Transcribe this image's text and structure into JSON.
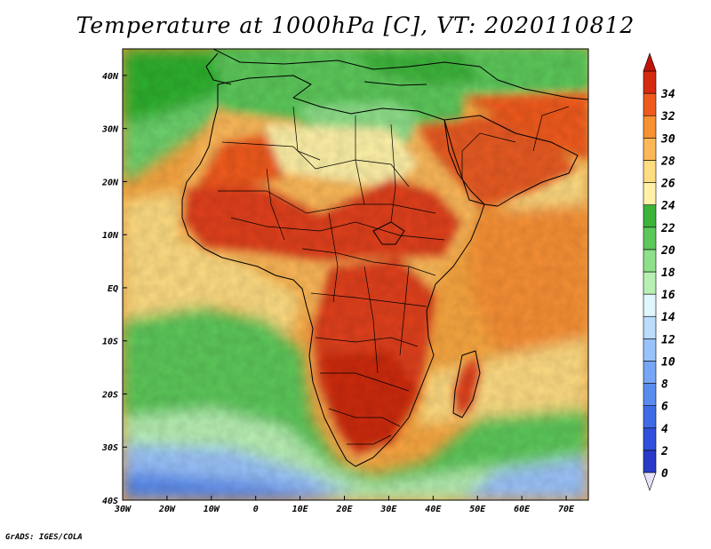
{
  "title": "Temperature at 1000hPa [C], VT: 2020110812",
  "credit": "GrADS: IGES/COLA",
  "map": {
    "projection": "latlon",
    "lon_range": [
      -30,
      75
    ],
    "lat_range": [
      -40,
      45
    ],
    "x_ticks": [
      -30,
      -20,
      -10,
      0,
      10,
      20,
      30,
      40,
      50,
      60,
      70
    ],
    "x_labels": [
      "30W",
      "20W",
      "10W",
      "0",
      "10E",
      "20E",
      "30E",
      "40E",
      "50E",
      "60E",
      "70E"
    ],
    "y_ticks": [
      40,
      30,
      20,
      10,
      0,
      -10,
      -20,
      -30,
      -40
    ],
    "y_labels": [
      "40N",
      "30N",
      "20N",
      "10N",
      "EQ",
      "10S",
      "20S",
      "30S",
      "40S"
    ]
  },
  "colorbar": {
    "levels": [
      0,
      2,
      4,
      6,
      8,
      10,
      12,
      14,
      16,
      18,
      20,
      22,
      24,
      26,
      28,
      30,
      32,
      34
    ],
    "labels": [
      "0",
      "2",
      "4",
      "6",
      "8",
      "10",
      "12",
      "14",
      "16",
      "18",
      "20",
      "22",
      "24",
      "26",
      "28",
      "30",
      "32",
      "34"
    ],
    "colors": [
      "#2a3ac8",
      "#3050dc",
      "#3f6ce6",
      "#5a8cf0",
      "#78a6f6",
      "#9ac2fa",
      "#bcdcfc",
      "#e0f6fa",
      "#b8f0b4",
      "#8ee08a",
      "#5cc85a",
      "#3cb43a",
      "#fff2a8",
      "#fedc82",
      "#fcb858",
      "#f89034",
      "#f05a1e",
      "#d52a10"
    ],
    "under_color": "#e8e0f8",
    "over_color": "#c01408"
  },
  "colors": {
    "ocean": "#f8a640",
    "cool_ocean": "#7ad47a",
    "land_hot": "#e0401a",
    "land_warm": "#fcb858",
    "land_mild": "#fff2a8",
    "med_green": "#5cc85a"
  }
}
